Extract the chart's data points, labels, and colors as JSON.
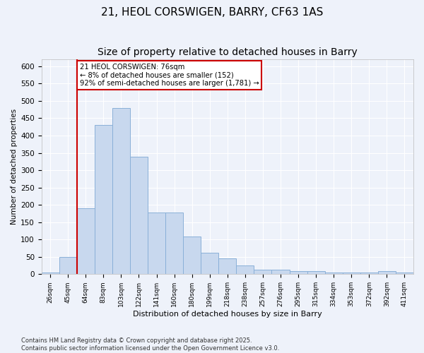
{
  "title1": "21, HEOL CORSWIGEN, BARRY, CF63 1AS",
  "title2": "Size of property relative to detached houses in Barry",
  "xlabel": "Distribution of detached houses by size in Barry",
  "ylabel": "Number of detached properties",
  "categories": [
    "26sqm",
    "45sqm",
    "64sqm",
    "83sqm",
    "103sqm",
    "122sqm",
    "141sqm",
    "160sqm",
    "180sqm",
    "199sqm",
    "218sqm",
    "238sqm",
    "257sqm",
    "276sqm",
    "295sqm",
    "315sqm",
    "334sqm",
    "353sqm",
    "372sqm",
    "392sqm",
    "411sqm"
  ],
  "values": [
    5,
    50,
    190,
    430,
    480,
    338,
    178,
    178,
    108,
    62,
    45,
    25,
    12,
    12,
    8,
    8,
    5,
    5,
    5,
    8,
    4
  ],
  "bar_color": "#c8d8ee",
  "bar_edge_color": "#8ab0d8",
  "annotation_text": "21 HEOL CORSWIGEN: 76sqm\n← 8% of detached houses are smaller (152)\n92% of semi-detached houses are larger (1,781) →",
  "annotation_box_color": "#ffffff",
  "annotation_box_edge": "#cc0000",
  "vline_color": "#cc0000",
  "vline_x": 2,
  "ylim": [
    0,
    620
  ],
  "yticks": [
    0,
    50,
    100,
    150,
    200,
    250,
    300,
    350,
    400,
    450,
    500,
    550,
    600
  ],
  "bg_color": "#eef2fa",
  "grid_color": "#ffffff",
  "footer": "Contains HM Land Registry data © Crown copyright and database right 2025.\nContains public sector information licensed under the Open Government Licence v3.0.",
  "title1_fontsize": 11,
  "title2_fontsize": 10
}
